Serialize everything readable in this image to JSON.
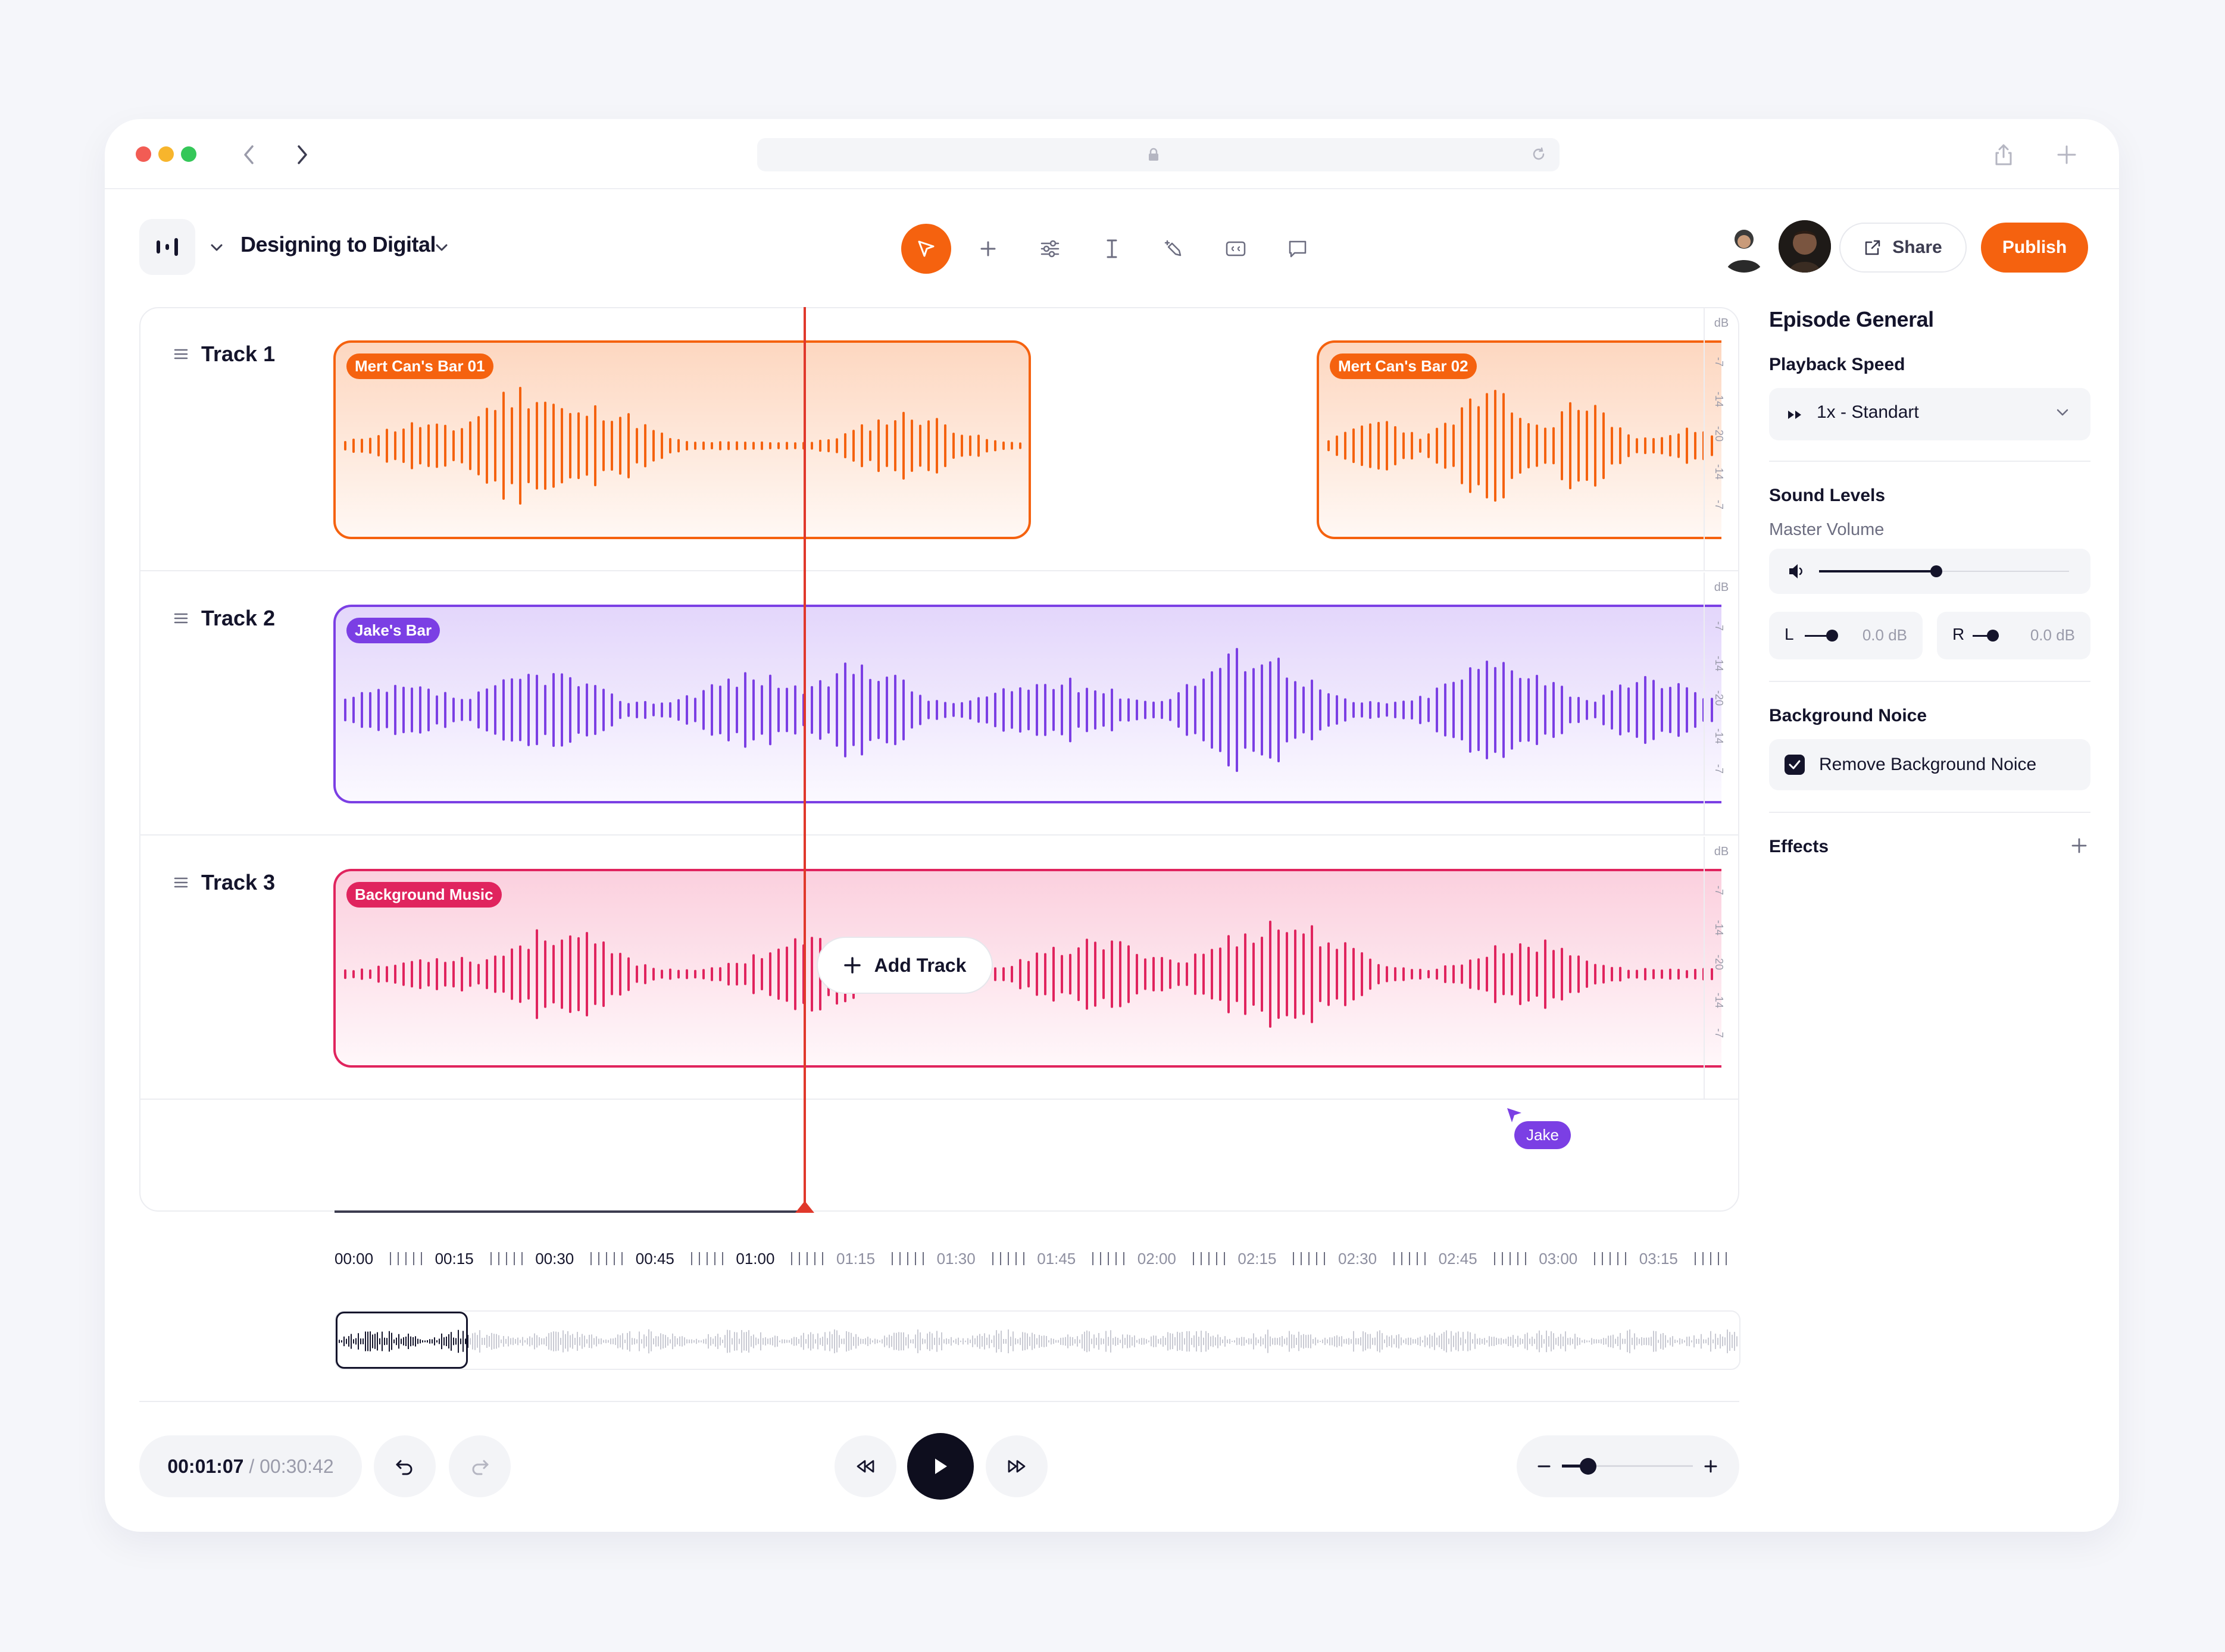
{
  "app": {
    "project_title": "Designing to Digital",
    "share_label": "Share",
    "publish_label": "Publish",
    "accent": "#F5620F"
  },
  "toolbar": {
    "tools": [
      "pointer-icon",
      "plus-icon",
      "sliders-icon",
      "text-cursor-icon",
      "magic-icon",
      "captions-icon",
      "comment-icon"
    ]
  },
  "tracks": [
    {
      "label": "Track 1",
      "clips": [
        {
          "name": "Mert Can's Bar 01",
          "color": "#F5620F"
        },
        {
          "name": "Mert Can's Bar 02",
          "color": "#F5620F"
        }
      ]
    },
    {
      "label": "Track 2",
      "clips": [
        {
          "name": "Jake's Bar",
          "color": "#7B3FE4"
        }
      ]
    },
    {
      "label": "Track 3",
      "clips": [
        {
          "name": "Background Music",
          "color": "#E0245E"
        }
      ]
    }
  ],
  "db_scale": {
    "unit": "dB",
    "ticks": [
      "-7",
      "-14",
      "-20",
      "-14",
      "-7"
    ]
  },
  "add_track_label": "Add Track",
  "collaborator_cursor": "Jake",
  "ruler": [
    "00:00",
    "00:15",
    "00:30",
    "00:45",
    "01:00",
    "01:15",
    "01:30",
    "01:45",
    "02:00",
    "02:15",
    "02:30",
    "02:45",
    "03:00",
    "03:15"
  ],
  "transport": {
    "current_time": "00:01:07",
    "separator": " / ",
    "total_time": "00:30:42"
  },
  "side_panel": {
    "title": "Episode General",
    "playback_speed_label": "Playback Speed",
    "playback_speed_value": "1x - Standart",
    "sound_levels_label": "Sound Levels",
    "master_volume_label": "Master Volume",
    "master_volume_level": 0.47,
    "left_channel": {
      "label": "L",
      "value": "0.0 dB"
    },
    "right_channel": {
      "label": "R",
      "value": "0.0 dB"
    },
    "background_noise_label": "Background Noice",
    "remove_noise_label": "Remove Background Noice",
    "remove_noise_checked": true,
    "effects_label": "Effects"
  }
}
